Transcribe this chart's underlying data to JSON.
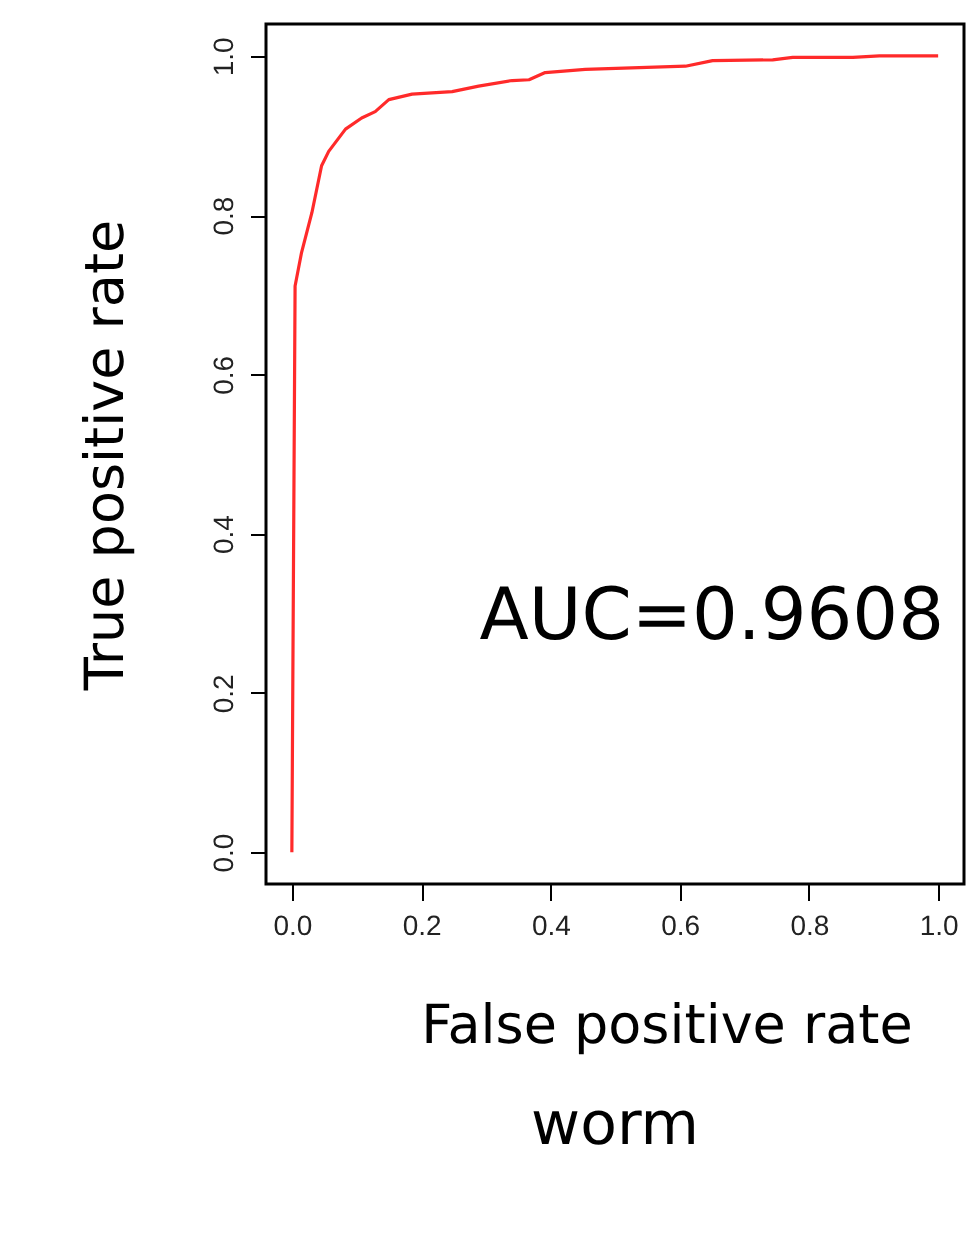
{
  "chart_data": {
    "type": "line",
    "title": "worm",
    "xlabel": "False positive rate",
    "ylabel": "True positive rate",
    "x": [
      0,
      0.005,
      0.015,
      0.031,
      0.046,
      0.057,
      0.083,
      0.108,
      0.129,
      0.15,
      0.186,
      0.248,
      0.289,
      0.341,
      0.367,
      0.392,
      0.454,
      0.609,
      0.651,
      0.744,
      0.775,
      0.868,
      0.909,
      1.0
    ],
    "series": [
      {
        "color": "#ff2a2a",
        "values": [
          0,
          0.711,
          0.753,
          0.803,
          0.862,
          0.88,
          0.908,
          0.922,
          0.93,
          0.945,
          0.952,
          0.955,
          0.962,
          0.969,
          0.97,
          0.979,
          0.983,
          0.987,
          0.994,
          0.995,
          0.998,
          0.998,
          1.0,
          1.0
        ]
      }
    ],
    "xlim": [
      -0.04,
      1.04
    ],
    "ylim": [
      -0.04,
      1.04
    ],
    "xticks": [
      {
        "value": 0,
        "label": "0.0"
      },
      {
        "value": 0.2,
        "label": "0.2"
      },
      {
        "value": 0.4,
        "label": "0.4"
      },
      {
        "value": 0.6,
        "label": "0.6"
      },
      {
        "value": 0.8,
        "label": "0.8"
      },
      {
        "value": 1,
        "label": "1.0"
      }
    ],
    "yticks": [
      {
        "value": 0,
        "label": "0.0"
      },
      {
        "value": 0.2,
        "label": "0.2"
      },
      {
        "value": 0.4,
        "label": "0.4"
      },
      {
        "value": 0.6,
        "label": "0.6"
      },
      {
        "value": 0.8,
        "label": "0.8"
      },
      {
        "value": 1,
        "label": "1.0"
      }
    ],
    "annotations": [
      "AUC=0.9608"
    ],
    "grid": false,
    "marker": "none",
    "line_style": "solid"
  }
}
